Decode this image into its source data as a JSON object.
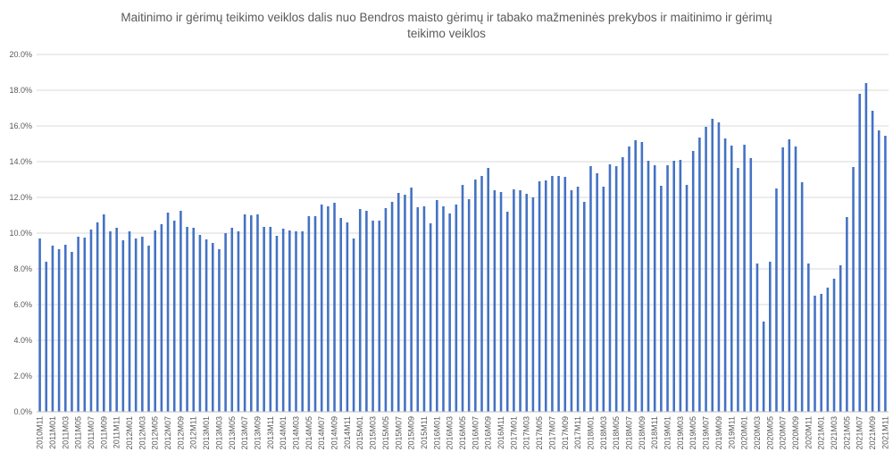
{
  "chart_data": {
    "type": "bar",
    "title_lines": [
      "Maitinimo ir gėrimų teikimo veiklos dalis nuo Bendros maisto gėrimų ir tabako mažmeninės prekybos ir maitinimo ir gėrimų",
      "teikimo veiklos"
    ],
    "xlabel": "",
    "ylabel": "",
    "ylim": [
      0,
      20
    ],
    "y_ticks": [
      "0.0%",
      "2.0%",
      "4.0%",
      "6.0%",
      "8.0%",
      "10.0%",
      "12.0%",
      "14.0%",
      "16.0%",
      "18.0%",
      "20.0%"
    ],
    "y_tick_values": [
      0,
      2,
      4,
      6,
      8,
      10,
      12,
      14,
      16,
      18,
      20
    ],
    "value_unit": "%",
    "grid": true,
    "legend": "none",
    "bar_color": "#4472c4",
    "start_period": "2010M11",
    "label_every": 2,
    "values": [
      9.7,
      8.4,
      9.3,
      9.1,
      9.35,
      8.95,
      9.8,
      9.75,
      10.2,
      10.6,
      11.05,
      10.1,
      10.3,
      9.6,
      10.1,
      9.7,
      9.8,
      9.3,
      10.15,
      10.5,
      11.15,
      10.7,
      11.25,
      10.35,
      10.3,
      9.9,
      9.65,
      9.45,
      9.1,
      10.0,
      10.3,
      10.1,
      11.05,
      11.0,
      11.05,
      10.35,
      10.35,
      9.85,
      10.25,
      10.15,
      10.1,
      10.1,
      10.95,
      10.95,
      11.6,
      11.5,
      11.7,
      10.85,
      10.6,
      9.7,
      11.35,
      11.25,
      10.7,
      10.7,
      11.4,
      11.75,
      12.25,
      12.15,
      12.55,
      11.45,
      11.5,
      10.55,
      11.85,
      11.5,
      11.1,
      11.6,
      12.7,
      11.9,
      13.0,
      13.2,
      13.65,
      12.4,
      12.3,
      11.2,
      12.45,
      12.4,
      12.2,
      12.0,
      12.9,
      12.95,
      13.2,
      13.2,
      13.15,
      12.4,
      12.6,
      11.75,
      13.75,
      13.35,
      12.6,
      13.85,
      13.75,
      14.25,
      14.85,
      15.2,
      15.1,
      14.05,
      13.8,
      12.65,
      13.8,
      14.05,
      14.1,
      12.7,
      14.6,
      15.35,
      15.95,
      16.4,
      16.2,
      15.3,
      14.9,
      13.65,
      14.95,
      14.2,
      8.3,
      5.05,
      8.4,
      12.5,
      14.8,
      15.25,
      14.85,
      12.85,
      8.3,
      6.5,
      6.6,
      6.95,
      7.45,
      8.2,
      10.9,
      13.7,
      17.8,
      18.4,
      16.85,
      15.75,
      15.45
    ],
    "categories": [
      "2010M11",
      "2010M12",
      "2011M01",
      "2011M02",
      "2011M03",
      "2011M04",
      "2011M05",
      "2011M06",
      "2011M07",
      "2011M08",
      "2011M09",
      "2011M10",
      "2011M11",
      "2011M12",
      "2012M01",
      "2012M02",
      "2012M03",
      "2012M04",
      "2012M05",
      "2012M06",
      "2012M07",
      "2012M08",
      "2012M09",
      "2012M10",
      "2012M11",
      "2012M12",
      "2013M01",
      "2013M02",
      "2013M03",
      "2013M04",
      "2013M05",
      "2013M06",
      "2013M07",
      "2013M08",
      "2013M09",
      "2013M10",
      "2013M11",
      "2013M12",
      "2014M01",
      "2014M02",
      "2014M03",
      "2014M04",
      "2014M05",
      "2014M06",
      "2014M07",
      "2014M08",
      "2014M09",
      "2014M10",
      "2014M11",
      "2014M12",
      "2015M01",
      "2015M02",
      "2015M03",
      "2015M04",
      "2015M05",
      "2015M06",
      "2015M07",
      "2015M08",
      "2015M09",
      "2015M10",
      "2015M11",
      "2015M12",
      "2016M01",
      "2016M02",
      "2016M03",
      "2016M04",
      "2016M05",
      "2016M06",
      "2016M07",
      "2016M08",
      "2016M09",
      "2016M10",
      "2016M11",
      "2016M12",
      "2017M01",
      "2017M02",
      "2017M03",
      "2017M04",
      "2017M05",
      "2017M06",
      "2017M07",
      "2017M08",
      "2017M09",
      "2017M10",
      "2017M11",
      "2017M12",
      "2018M01",
      "2018M02",
      "2018M03",
      "2018M04",
      "2018M05",
      "2018M06",
      "2018M07",
      "2018M08",
      "2018M09",
      "2018M10",
      "2018M11",
      "2018M12",
      "2019M01",
      "2019M02",
      "2019M03",
      "2019M04",
      "2019M05",
      "2019M06",
      "2019M07",
      "2019M08",
      "2019M09",
      "2019M10",
      "2019M11",
      "2019M12",
      "2020M01",
      "2020M02",
      "2020M03",
      "2020M04",
      "2020M05",
      "2020M06",
      "2020M07",
      "2020M08",
      "2020M09",
      "2020M10",
      "2020M11",
      "2020M12",
      "2021M01",
      "2021M02",
      "2021M03",
      "2021M04",
      "2021M05",
      "2021M06",
      "2021M07",
      "2021M08",
      "2021M09",
      "2021M10",
      "2021M11"
    ]
  }
}
